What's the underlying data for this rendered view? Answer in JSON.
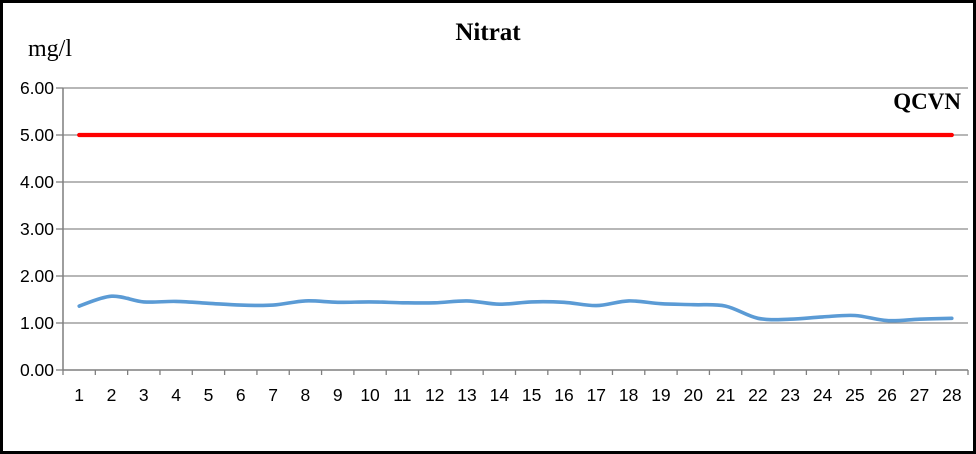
{
  "colors": {
    "series_line": "#5B9BD5",
    "limit_line": "#FF0000",
    "gridline": "#8C8C8C",
    "axis": "#7F7F7F",
    "text": "#000000",
    "border": "#000000"
  },
  "chart_data": {
    "type": "line",
    "title": "Nitrat",
    "ylabel": "mg/l",
    "xlabel": "",
    "categories": [
      "1",
      "2",
      "3",
      "4",
      "5",
      "6",
      "7",
      "8",
      "9",
      "10",
      "11",
      "12",
      "13",
      "14",
      "15",
      "16",
      "17",
      "18",
      "19",
      "20",
      "21",
      "22",
      "23",
      "24",
      "25",
      "26",
      "27",
      "28"
    ],
    "y_tick_labels": [
      "0.00",
      "1.00",
      "2.00",
      "3.00",
      "4.00",
      "5.00",
      "6.00"
    ],
    "ylim": [
      0,
      6
    ],
    "y_tick_step": 1,
    "grid": true,
    "legend": "none",
    "series": [
      {
        "name": "Nitrat",
        "style": "smooth-line",
        "color": "#5B9BD5",
        "values": [
          1.36,
          1.57,
          1.45,
          1.46,
          1.42,
          1.38,
          1.38,
          1.47,
          1.44,
          1.45,
          1.43,
          1.43,
          1.47,
          1.4,
          1.45,
          1.44,
          1.37,
          1.47,
          1.41,
          1.39,
          1.36,
          1.1,
          1.08,
          1.13,
          1.16,
          1.05,
          1.08,
          1.1
        ]
      },
      {
        "name": "QCVN",
        "style": "straight-line",
        "color": "#FF0000",
        "values": [
          5,
          5,
          5,
          5,
          5,
          5,
          5,
          5,
          5,
          5,
          5,
          5,
          5,
          5,
          5,
          5,
          5,
          5,
          5,
          5,
          5,
          5,
          5,
          5,
          5,
          5,
          5,
          5
        ]
      }
    ],
    "annotation": {
      "text": "QCVN",
      "at_value": 5.0,
      "position": "above-line-right"
    }
  }
}
